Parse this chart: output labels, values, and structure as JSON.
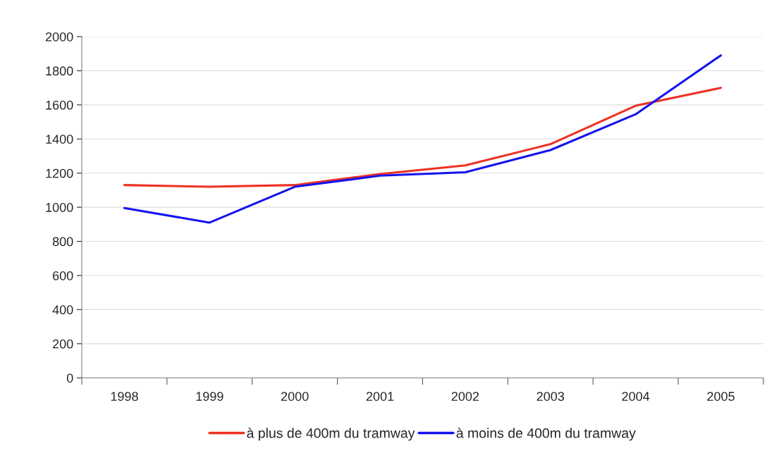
{
  "chart_data": {
    "type": "line",
    "categories": [
      "1998",
      "1999",
      "2000",
      "2001",
      "2002",
      "2003",
      "2004",
      "2005"
    ],
    "series": [
      {
        "name": "à plus de 400m du tramway",
        "color": "#ee3124",
        "values": [
          1130,
          1120,
          1130,
          1195,
          1245,
          1370,
          1595,
          1700
        ]
      },
      {
        "name": "à moins de 400m du tramway",
        "color": "#1414ee",
        "values": [
          995,
          910,
          1120,
          1185,
          1205,
          1335,
          1545,
          1890
        ]
      }
    ],
    "ylim": [
      0,
      2000
    ],
    "yticks": [
      0,
      200,
      400,
      600,
      800,
      1000,
      1200,
      1400,
      1600,
      1800,
      2000
    ],
    "grid": "y",
    "legend": "bottom",
    "marker": "none",
    "line_style": "solid"
  }
}
